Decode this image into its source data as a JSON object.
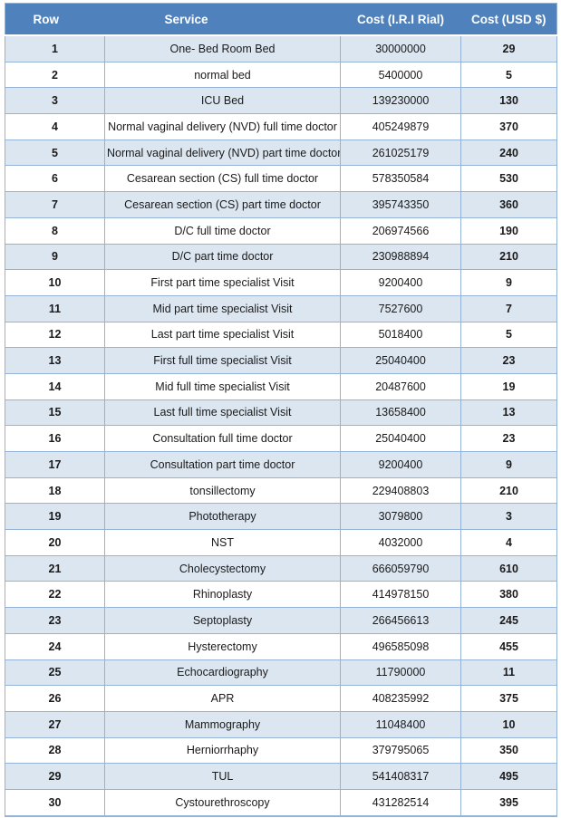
{
  "table": {
    "columns": [
      {
        "key": "row",
        "label": "Row"
      },
      {
        "key": "service",
        "label": "Service"
      },
      {
        "key": "cost_rial",
        "label": "Cost (I.R.I Rial)"
      },
      {
        "key": "cost_usd",
        "label": "Cost (USD $)"
      }
    ],
    "rows": [
      {
        "row": "1",
        "service": "One- Bed Room Bed",
        "cost_rial": "30000000",
        "cost_usd": "29"
      },
      {
        "row": "2",
        "service": "normal bed",
        "cost_rial": "5400000",
        "cost_usd": "5"
      },
      {
        "row": "3",
        "service": "ICU Bed",
        "cost_rial": "139230000",
        "cost_usd": "130"
      },
      {
        "row": "4",
        "service": "Normal vaginal delivery (NVD) full time doctor",
        "cost_rial": "405249879",
        "cost_usd": "370"
      },
      {
        "row": "5",
        "service": "Normal vaginal delivery (NVD) part time doctor",
        "cost_rial": "261025179",
        "cost_usd": "240"
      },
      {
        "row": "6",
        "service": "Cesarean section (CS) full time doctor",
        "cost_rial": "578350584",
        "cost_usd": "530"
      },
      {
        "row": "7",
        "service": "Cesarean section (CS) part time doctor",
        "cost_rial": "395743350",
        "cost_usd": "360"
      },
      {
        "row": "8",
        "service": "D/C  full time doctor",
        "cost_rial": "206974566",
        "cost_usd": "190"
      },
      {
        "row": "9",
        "service": "D/C  part  time doctor",
        "cost_rial": "230988894",
        "cost_usd": "210"
      },
      {
        "row": "10",
        "service": "First part  time specialist Visit",
        "cost_rial": "9200400",
        "cost_usd": "9"
      },
      {
        "row": "11",
        "service": "Mid part  time  specialist Visit",
        "cost_rial": "7527600",
        "cost_usd": "7"
      },
      {
        "row": "12",
        "service": "Last part  time specialist Visit",
        "cost_rial": "5018400",
        "cost_usd": "5"
      },
      {
        "row": "13",
        "service": "First full  time specialist Visit",
        "cost_rial": "25040400",
        "cost_usd": "23"
      },
      {
        "row": "14",
        "service": "Mid full  time  specialist Visit",
        "cost_rial": "20487600",
        "cost_usd": "19"
      },
      {
        "row": "15",
        "service": "Last full  time specialist Visit",
        "cost_rial": "13658400",
        "cost_usd": "13"
      },
      {
        "row": "16",
        "service": "Consultation full time doctor",
        "cost_rial": "25040400",
        "cost_usd": "23"
      },
      {
        "row": "17",
        "service": "Consultation part  time doctor",
        "cost_rial": "9200400",
        "cost_usd": "9"
      },
      {
        "row": "18",
        "service": "tonsillectomy",
        "cost_rial": "229408803",
        "cost_usd": "210"
      },
      {
        "row": "19",
        "service": "Phototherapy",
        "cost_rial": "3079800",
        "cost_usd": "3"
      },
      {
        "row": "20",
        "service": "NST",
        "cost_rial": "4032000",
        "cost_usd": "4"
      },
      {
        "row": "21",
        "service": "Cholecystectomy",
        "cost_rial": "666059790",
        "cost_usd": "610"
      },
      {
        "row": "22",
        "service": "Rhinoplasty",
        "cost_rial": "414978150",
        "cost_usd": "380"
      },
      {
        "row": "23",
        "service": "Septoplasty",
        "cost_rial": "266456613",
        "cost_usd": "245"
      },
      {
        "row": "24",
        "service": "Hysterectomy",
        "cost_rial": "496585098",
        "cost_usd": "455"
      },
      {
        "row": "25",
        "service": "Echocardiography",
        "cost_rial": "11790000",
        "cost_usd": "11"
      },
      {
        "row": "26",
        "service": "APR",
        "cost_rial": "408235992",
        "cost_usd": "375"
      },
      {
        "row": "27",
        "service": "Mammography",
        "cost_rial": "11048400",
        "cost_usd": "10"
      },
      {
        "row": "28",
        "service": "Herniorrhaphy",
        "cost_rial": "379795065",
        "cost_usd": "350"
      },
      {
        "row": "29",
        "service": "TUL",
        "cost_rial": "541408317",
        "cost_usd": "495"
      },
      {
        "row": "30",
        "service": "Cystourethroscopy",
        "cost_rial": "431282514",
        "cost_usd": "395"
      }
    ]
  },
  "colors": {
    "header_bg": "#4F81BD",
    "header_text": "#FFFFFF",
    "band_bg": "#DCE6F1",
    "border": "#95B3D7",
    "body_text": "#1A1A1A"
  }
}
